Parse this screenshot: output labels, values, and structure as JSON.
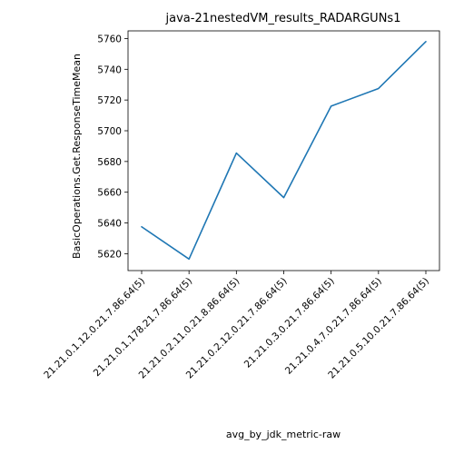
{
  "chart_data": {
    "type": "line",
    "title": "java-21nestedVM_results_RADARGUNs1",
    "xlabel": "avg_by_jdk_metric-raw",
    "ylabel": "BasicOperations.Get.ResponseTimeMean",
    "categories": [
      "21.21.0.1.12.0.21.7.86.64(5)",
      "21.21.0.1.178.21.7.86.64(5)",
      "21.21.0.2.11.0.21.8.86.64(5)",
      "21.21.0.2.12.0.21.7.86.64(5)",
      "21.21.0.3.0.21.7.86.64(5)",
      "21.21.0.4.7.0.21.7.86.64(5)",
      "21.21.0.5.10.0.21.7.86.64(5)"
    ],
    "series": [
      {
        "values": [
          5637.5,
          5616.5,
          5685.5,
          5656.5,
          5716.0,
          5727.5,
          5758.0
        ]
      }
    ],
    "yticks": [
      5620,
      5640,
      5660,
      5680,
      5700,
      5720,
      5740,
      5760
    ],
    "ylim": [
      5609,
      5765
    ],
    "grid": false,
    "legend": "none",
    "line_color": "#1f77b4"
  }
}
